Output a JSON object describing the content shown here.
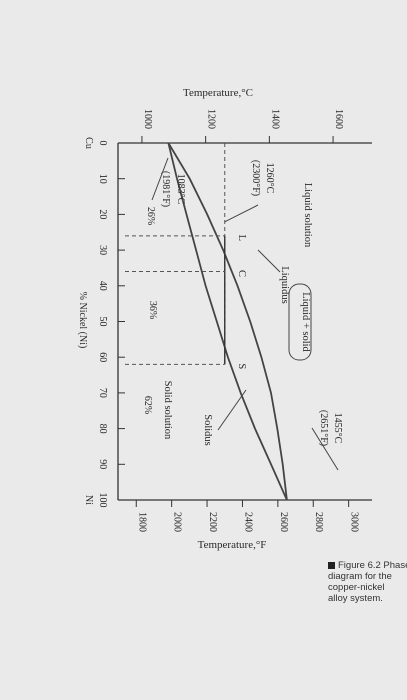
{
  "chart_data": {
    "type": "phase-diagram",
    "x_axis": {
      "label": "% Nickel (Ni)",
      "ticks": [
        "0",
        "10",
        "20",
        "30",
        "40",
        "50",
        "60",
        "70",
        "80",
        "90",
        "100"
      ],
      "left_component": "Cu",
      "right_component": "Ni",
      "range": [
        0,
        100
      ]
    },
    "y_axis_left": {
      "label": "Temperature,°C",
      "ticks": [
        "1000",
        "1200",
        "1400",
        "1600"
      ],
      "range": [
        900,
        1700
      ]
    },
    "y_axis_right": {
      "label": "Temperature,°F",
      "ticks": [
        "1800",
        "2000",
        "2200",
        "2400",
        "2600",
        "2800",
        "3000"
      ]
    },
    "liquidus": [
      [
        0,
        1083
      ],
      [
        10,
        1150
      ],
      [
        20,
        1205
      ],
      [
        30,
        1255
      ],
      [
        40,
        1300
      ],
      [
        50,
        1340
      ],
      [
        60,
        1375
      ],
      [
        70,
        1405
      ],
      [
        80,
        1425
      ],
      [
        90,
        1442
      ],
      [
        100,
        1455
      ]
    ],
    "solidus": [
      [
        0,
        1083
      ],
      [
        10,
        1110
      ],
      [
        20,
        1140
      ],
      [
        30,
        1170
      ],
      [
        40,
        1200
      ],
      [
        50,
        1235
      ],
      [
        60,
        1270
      ],
      [
        70,
        1310
      ],
      [
        80,
        1355
      ],
      [
        90,
        1405
      ],
      [
        100,
        1455
      ]
    ],
    "tie_line": {
      "temperature": 1260,
      "left_x": 26,
      "mid_x": 36,
      "right_x": 62
    },
    "regions": {
      "liquid": "Liquid solution",
      "two_phase": "Liquid + solid",
      "solid": "Solid solution"
    },
    "curve_labels": {
      "liquidus": "Liquidus",
      "solidus": "Solidus"
    },
    "points": {
      "cu_melt_c": "1083°C",
      "cu_melt_f": "(1981°F)",
      "ni_melt_c": "1455°C",
      "ni_melt_f": "(2651°F)",
      "tie_c": "1260°C",
      "tie_f": "(2300°F)",
      "L": "L",
      "C": "C",
      "S": "S"
    },
    "composition_labels": {
      "left": "26%",
      "mid": "36%",
      "right": "62%"
    }
  },
  "caption": {
    "line1": "Figure 6.2  Phase",
    "line2": "diagram for the",
    "line3": "copper-nickel",
    "line4": "alloy system."
  }
}
